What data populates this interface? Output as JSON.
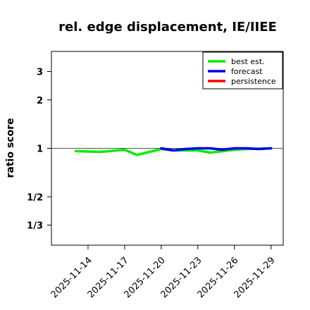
{
  "chart_data": {
    "type": "line",
    "title": "rel. edge displacement, IE/IIEE",
    "xlabel": "",
    "ylabel": "ratio score",
    "x_ticks": [
      "2025-11-14",
      "2025-11-17",
      "2025-11-20",
      "2025-11-23",
      "2025-11-26",
      "2025-11-29"
    ],
    "highlight_tick": "2025-11-20",
    "highlight_color": "#228b22",
    "y_scale": "log",
    "y_ticks": [
      "3",
      "2",
      "1",
      "1/2",
      "1/3"
    ],
    "y_tick_values": [
      3,
      2,
      1,
      0.5,
      0.3333
    ],
    "ylim": [
      0.25,
      4.0
    ],
    "xlim": [
      "2025-11-11",
      "2025-11-30"
    ],
    "reference_line": 1,
    "legend_position": "top-right",
    "series": [
      {
        "name": "best est.",
        "color": "#00ee00",
        "points": [
          [
            "2025-11-13",
            0.96
          ],
          [
            "2025-11-15",
            0.95
          ],
          [
            "2025-11-17",
            0.98
          ],
          [
            "2025-11-18",
            0.91
          ],
          [
            "2025-11-20",
            0.99
          ],
          [
            "2025-11-21",
            0.97
          ],
          [
            "2025-11-23",
            0.97
          ],
          [
            "2025-11-24",
            0.94
          ],
          [
            "2025-11-26",
            0.98
          ],
          [
            "2025-11-27",
            0.99
          ],
          [
            "2025-11-29",
            1.0
          ]
        ]
      },
      {
        "name": "forecast",
        "color": "#0000ee",
        "points": [
          [
            "2025-11-20",
            1.0
          ],
          [
            "2025-11-21",
            0.97
          ],
          [
            "2025-11-22",
            0.99
          ],
          [
            "2025-11-23",
            1.0
          ],
          [
            "2025-11-24",
            1.0
          ],
          [
            "2025-11-25",
            0.98
          ],
          [
            "2025-11-26",
            1.0
          ],
          [
            "2025-11-27",
            1.0
          ],
          [
            "2025-11-28",
            0.99
          ],
          [
            "2025-11-29",
            1.0
          ]
        ]
      },
      {
        "name": "persistence",
        "color": "#ff0000",
        "points": []
      }
    ]
  }
}
